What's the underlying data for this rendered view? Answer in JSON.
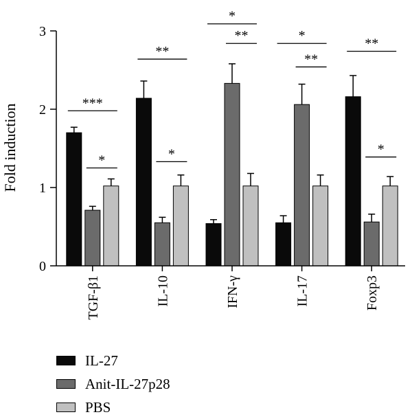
{
  "chart_data": {
    "type": "bar",
    "title": "",
    "xlabel": "",
    "ylabel": "Fold induction",
    "ylim": [
      0,
      3
    ],
    "yticks": [
      "0",
      "1",
      "2",
      "3"
    ],
    "grid": false,
    "legend_position": "bottom-left",
    "categories": [
      "TGF-β1",
      "IL-10",
      "IFN-γ",
      "IL-17",
      "Foxp3"
    ],
    "series": [
      {
        "name": "IL-27",
        "color": "#0a0a0a",
        "values": [
          1.7,
          2.14,
          0.54,
          0.55,
          2.16
        ],
        "errors": [
          0.07,
          0.22,
          0.05,
          0.09,
          0.27
        ]
      },
      {
        "name": "Anit-IL-27p28",
        "color": "#6b6b6b",
        "values": [
          0.71,
          0.55,
          2.33,
          2.06,
          0.56
        ],
        "errors": [
          0.05,
          0.07,
          0.25,
          0.26,
          0.1
        ]
      },
      {
        "name": "PBS",
        "color": "#c0c0c0",
        "values": [
          1.02,
          1.02,
          1.02,
          1.02,
          1.02
        ],
        "errors": [
          0.09,
          0.14,
          0.16,
          0.14,
          0.12
        ]
      }
    ],
    "significance": [
      {
        "category": 0,
        "from": 0,
        "to": 2,
        "label": "***",
        "level": 1.98
      },
      {
        "category": 0,
        "from": 1,
        "to": 2,
        "label": "*",
        "level": 1.25
      },
      {
        "category": 1,
        "from": 0,
        "to": 2,
        "label": "**",
        "level": 2.64
      },
      {
        "category": 1,
        "from": 1,
        "to": 2,
        "label": "*",
        "level": 1.33
      },
      {
        "category": 2,
        "from": 0,
        "to": 2,
        "label": "*",
        "level": 3.09
      },
      {
        "category": 2,
        "from": 1,
        "to": 2,
        "label": "**",
        "level": 2.84
      },
      {
        "category": 3,
        "from": 0,
        "to": 2,
        "label": "*",
        "level": 2.84
      },
      {
        "category": 3,
        "from": 1,
        "to": 2,
        "label": "**",
        "level": 2.54
      },
      {
        "category": 4,
        "from": 0,
        "to": 2,
        "label": "**",
        "level": 2.74
      },
      {
        "category": 4,
        "from": 1,
        "to": 2,
        "label": "*",
        "level": 1.39
      }
    ]
  }
}
